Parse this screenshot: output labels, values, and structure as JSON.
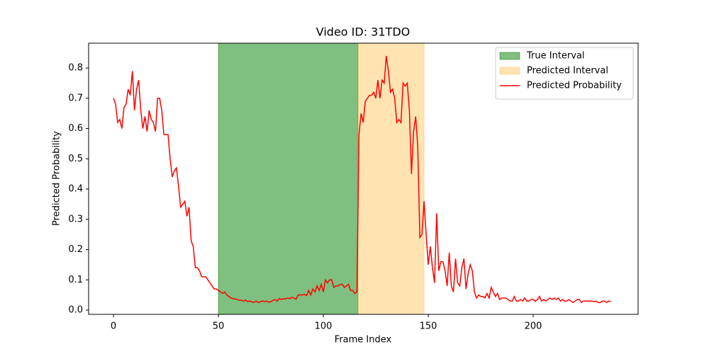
{
  "chart_data": {
    "type": "line",
    "title": "Video ID: 31TDO",
    "xlabel": "Frame Index",
    "ylabel": "Predicted Probability",
    "x": [
      0,
      1,
      2,
      3,
      4,
      5,
      6,
      7,
      8,
      9,
      10,
      11,
      12,
      13,
      14,
      15,
      16,
      17,
      18,
      19,
      20,
      21,
      22,
      23,
      24,
      25,
      26,
      27,
      28,
      29,
      30,
      31,
      32,
      33,
      34,
      35,
      36,
      37,
      38,
      39,
      40,
      41,
      42,
      43,
      44,
      45,
      46,
      47,
      48,
      49,
      50,
      51,
      52,
      53,
      54,
      55,
      56,
      57,
      58,
      59,
      60,
      61,
      62,
      63,
      64,
      65,
      66,
      67,
      68,
      69,
      70,
      71,
      72,
      73,
      74,
      75,
      76,
      77,
      78,
      79,
      80,
      81,
      82,
      83,
      84,
      85,
      86,
      87,
      88,
      89,
      90,
      91,
      92,
      93,
      94,
      95,
      96,
      97,
      98,
      99,
      100,
      101,
      102,
      103,
      104,
      105,
      106,
      107,
      108,
      109,
      110,
      111,
      112,
      113,
      114,
      115,
      116,
      117,
      118,
      119,
      120,
      121,
      122,
      123,
      124,
      125,
      126,
      127,
      128,
      129,
      130,
      131,
      132,
      133,
      134,
      135,
      136,
      137,
      138,
      139,
      140,
      141,
      142,
      143,
      144,
      145,
      146,
      147,
      148,
      149,
      150,
      151,
      152,
      153,
      154,
      155,
      156,
      157,
      158,
      159,
      160,
      161,
      162,
      163,
      164,
      165,
      166,
      167,
      168,
      169,
      170,
      171,
      172,
      173,
      174,
      175,
      176,
      177,
      178,
      179,
      180,
      181,
      182,
      183,
      184,
      185,
      186,
      187,
      188,
      189,
      190,
      191,
      192,
      193,
      194,
      195,
      196,
      197,
      198,
      199,
      200,
      201,
      202,
      203,
      204,
      205,
      206,
      207,
      208,
      209,
      210,
      211,
      212,
      213,
      214,
      215,
      216,
      217,
      218,
      219,
      220,
      221,
      222,
      223,
      224,
      225,
      226,
      227,
      228,
      229,
      230,
      231,
      232,
      233,
      234,
      235,
      236,
      237
    ],
    "intervals": [
      {
        "name": "True Interval",
        "start": 50,
        "end": 116.5,
        "color": "#008000",
        "opacity": 0.5
      },
      {
        "name": "Predicted Interval",
        "start": 116.5,
        "end": 148,
        "color": "#ffa500",
        "opacity": 0.3
      }
    ],
    "series": [
      {
        "name": "Predicted Probability",
        "color": "#ff0000",
        "values": [
          0.7,
          0.68,
          0.62,
          0.63,
          0.6,
          0.67,
          0.68,
          0.73,
          0.71,
          0.79,
          0.66,
          0.73,
          0.76,
          0.66,
          0.6,
          0.64,
          0.59,
          0.66,
          0.63,
          0.62,
          0.59,
          0.7,
          0.7,
          0.66,
          0.58,
          0.58,
          0.58,
          0.5,
          0.44,
          0.46,
          0.47,
          0.41,
          0.34,
          0.35,
          0.36,
          0.31,
          0.34,
          0.23,
          0.21,
          0.14,
          0.14,
          0.13,
          0.11,
          0.11,
          0.11,
          0.1,
          0.09,
          0.08,
          0.07,
          0.07,
          0.065,
          0.06,
          0.055,
          0.06,
          0.05,
          0.045,
          0.04,
          0.038,
          0.037,
          0.035,
          0.033,
          0.032,
          0.03,
          0.033,
          0.028,
          0.03,
          0.027,
          0.026,
          0.03,
          0.025,
          0.028,
          0.03,
          0.028,
          0.03,
          0.026,
          0.028,
          0.032,
          0.035,
          0.03,
          0.038,
          0.035,
          0.038,
          0.037,
          0.04,
          0.038,
          0.042,
          0.04,
          0.036,
          0.05,
          0.05,
          0.05,
          0.052,
          0.048,
          0.065,
          0.05,
          0.07,
          0.06,
          0.08,
          0.065,
          0.085,
          0.06,
          0.1,
          0.09,
          0.1,
          0.1,
          0.075,
          0.08,
          0.08,
          0.085,
          0.085,
          0.075,
          0.08,
          0.085,
          0.065,
          0.065,
          0.055,
          0.06,
          0.58,
          0.65,
          0.62,
          0.69,
          0.7,
          0.71,
          0.71,
          0.72,
          0.7,
          0.76,
          0.7,
          0.76,
          0.75,
          0.84,
          0.79,
          0.72,
          0.73,
          0.7,
          0.62,
          0.63,
          0.62,
          0.75,
          0.74,
          0.75,
          0.66,
          0.45,
          0.59,
          0.64,
          0.54,
          0.24,
          0.25,
          0.36,
          0.25,
          0.15,
          0.21,
          0.14,
          0.09,
          0.32,
          0.13,
          0.16,
          0.16,
          0.13,
          0.08,
          0.19,
          0.08,
          0.06,
          0.17,
          0.09,
          0.08,
          0.14,
          0.17,
          0.07,
          0.12,
          0.15,
          0.13,
          0.06,
          0.04,
          0.05,
          0.045,
          0.045,
          0.04,
          0.055,
          0.04,
          0.075,
          0.06,
          0.045,
          0.055,
          0.035,
          0.04,
          0.04,
          0.04,
          0.035,
          0.03,
          0.03,
          0.045,
          0.03,
          0.03,
          0.035,
          0.03,
          0.04,
          0.03,
          0.03,
          0.035,
          0.035,
          0.03,
          0.035,
          0.045,
          0.03,
          0.035,
          0.03,
          0.035,
          0.04,
          0.035,
          0.04,
          0.035,
          0.04,
          0.03,
          0.035,
          0.03,
          0.03,
          0.035,
          0.03,
          0.025,
          0.03,
          0.035,
          0.035,
          0.025,
          0.03,
          0.03,
          0.03,
          0.03,
          0.03,
          0.028,
          0.03,
          0.025,
          0.025,
          0.03,
          0.03,
          0.025,
          0.03,
          0.028
        ]
      }
    ],
    "xlim": [
      -11.85,
      250
    ],
    "ylim": [
      -0.014,
      0.882
    ],
    "xticks": [
      0,
      50,
      100,
      150,
      200
    ],
    "yticks": [
      {
        "value": 0,
        "label": "0.0"
      },
      0.1,
      0.2,
      0.3,
      0.4,
      0.5,
      0.6,
      0.7,
      0.8
    ],
    "legend": "upper right"
  }
}
